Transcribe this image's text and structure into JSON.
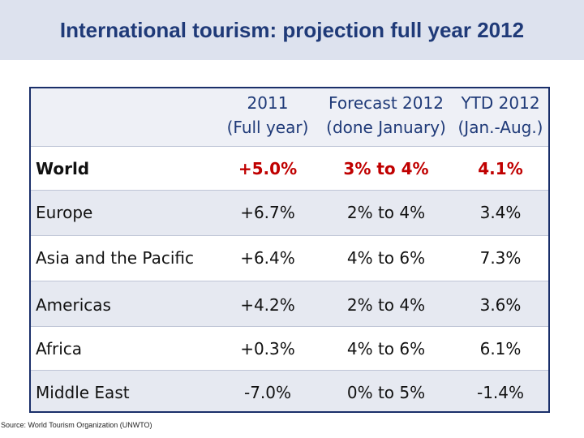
{
  "title": "International tourism: projection full year 2012",
  "columns": [
    {
      "line1": "2011",
      "line2": "(Full year)"
    },
    {
      "line1": "Forecast 2012",
      "line2": "(done January)"
    },
    {
      "line1": "YTD 2012",
      "line2": "(Jan.-Aug.)"
    }
  ],
  "rows": [
    {
      "region": "World",
      "y2011": "+5.0%",
      "forecast": "3% to 4%",
      "ytd": "4.1%"
    },
    {
      "region": "Europe",
      "y2011": "+6.7%",
      "forecast": "2% to 4%",
      "ytd": "3.4%"
    },
    {
      "region": "Asia and the Pacific",
      "y2011": "+6.4%",
      "forecast": "4% to 6%",
      "ytd": "7.3%"
    },
    {
      "region": "Americas",
      "y2011": "+4.2%",
      "forecast": "2% to 4%",
      "ytd": "3.6%"
    },
    {
      "region": "Africa",
      "y2011": "+0.3%",
      "forecast": "4% to 6%",
      "ytd": "6.1%"
    },
    {
      "region": "Middle East",
      "y2011": "-7.0%",
      "forecast": "0% to 5%",
      "ytd": "-1.4%"
    }
  ],
  "source": "Source: World Tourism Organization (UNWTO)",
  "colors": {
    "highlight": "#c00000",
    "title": "#1f3a78",
    "border": "#1a2f6a"
  }
}
